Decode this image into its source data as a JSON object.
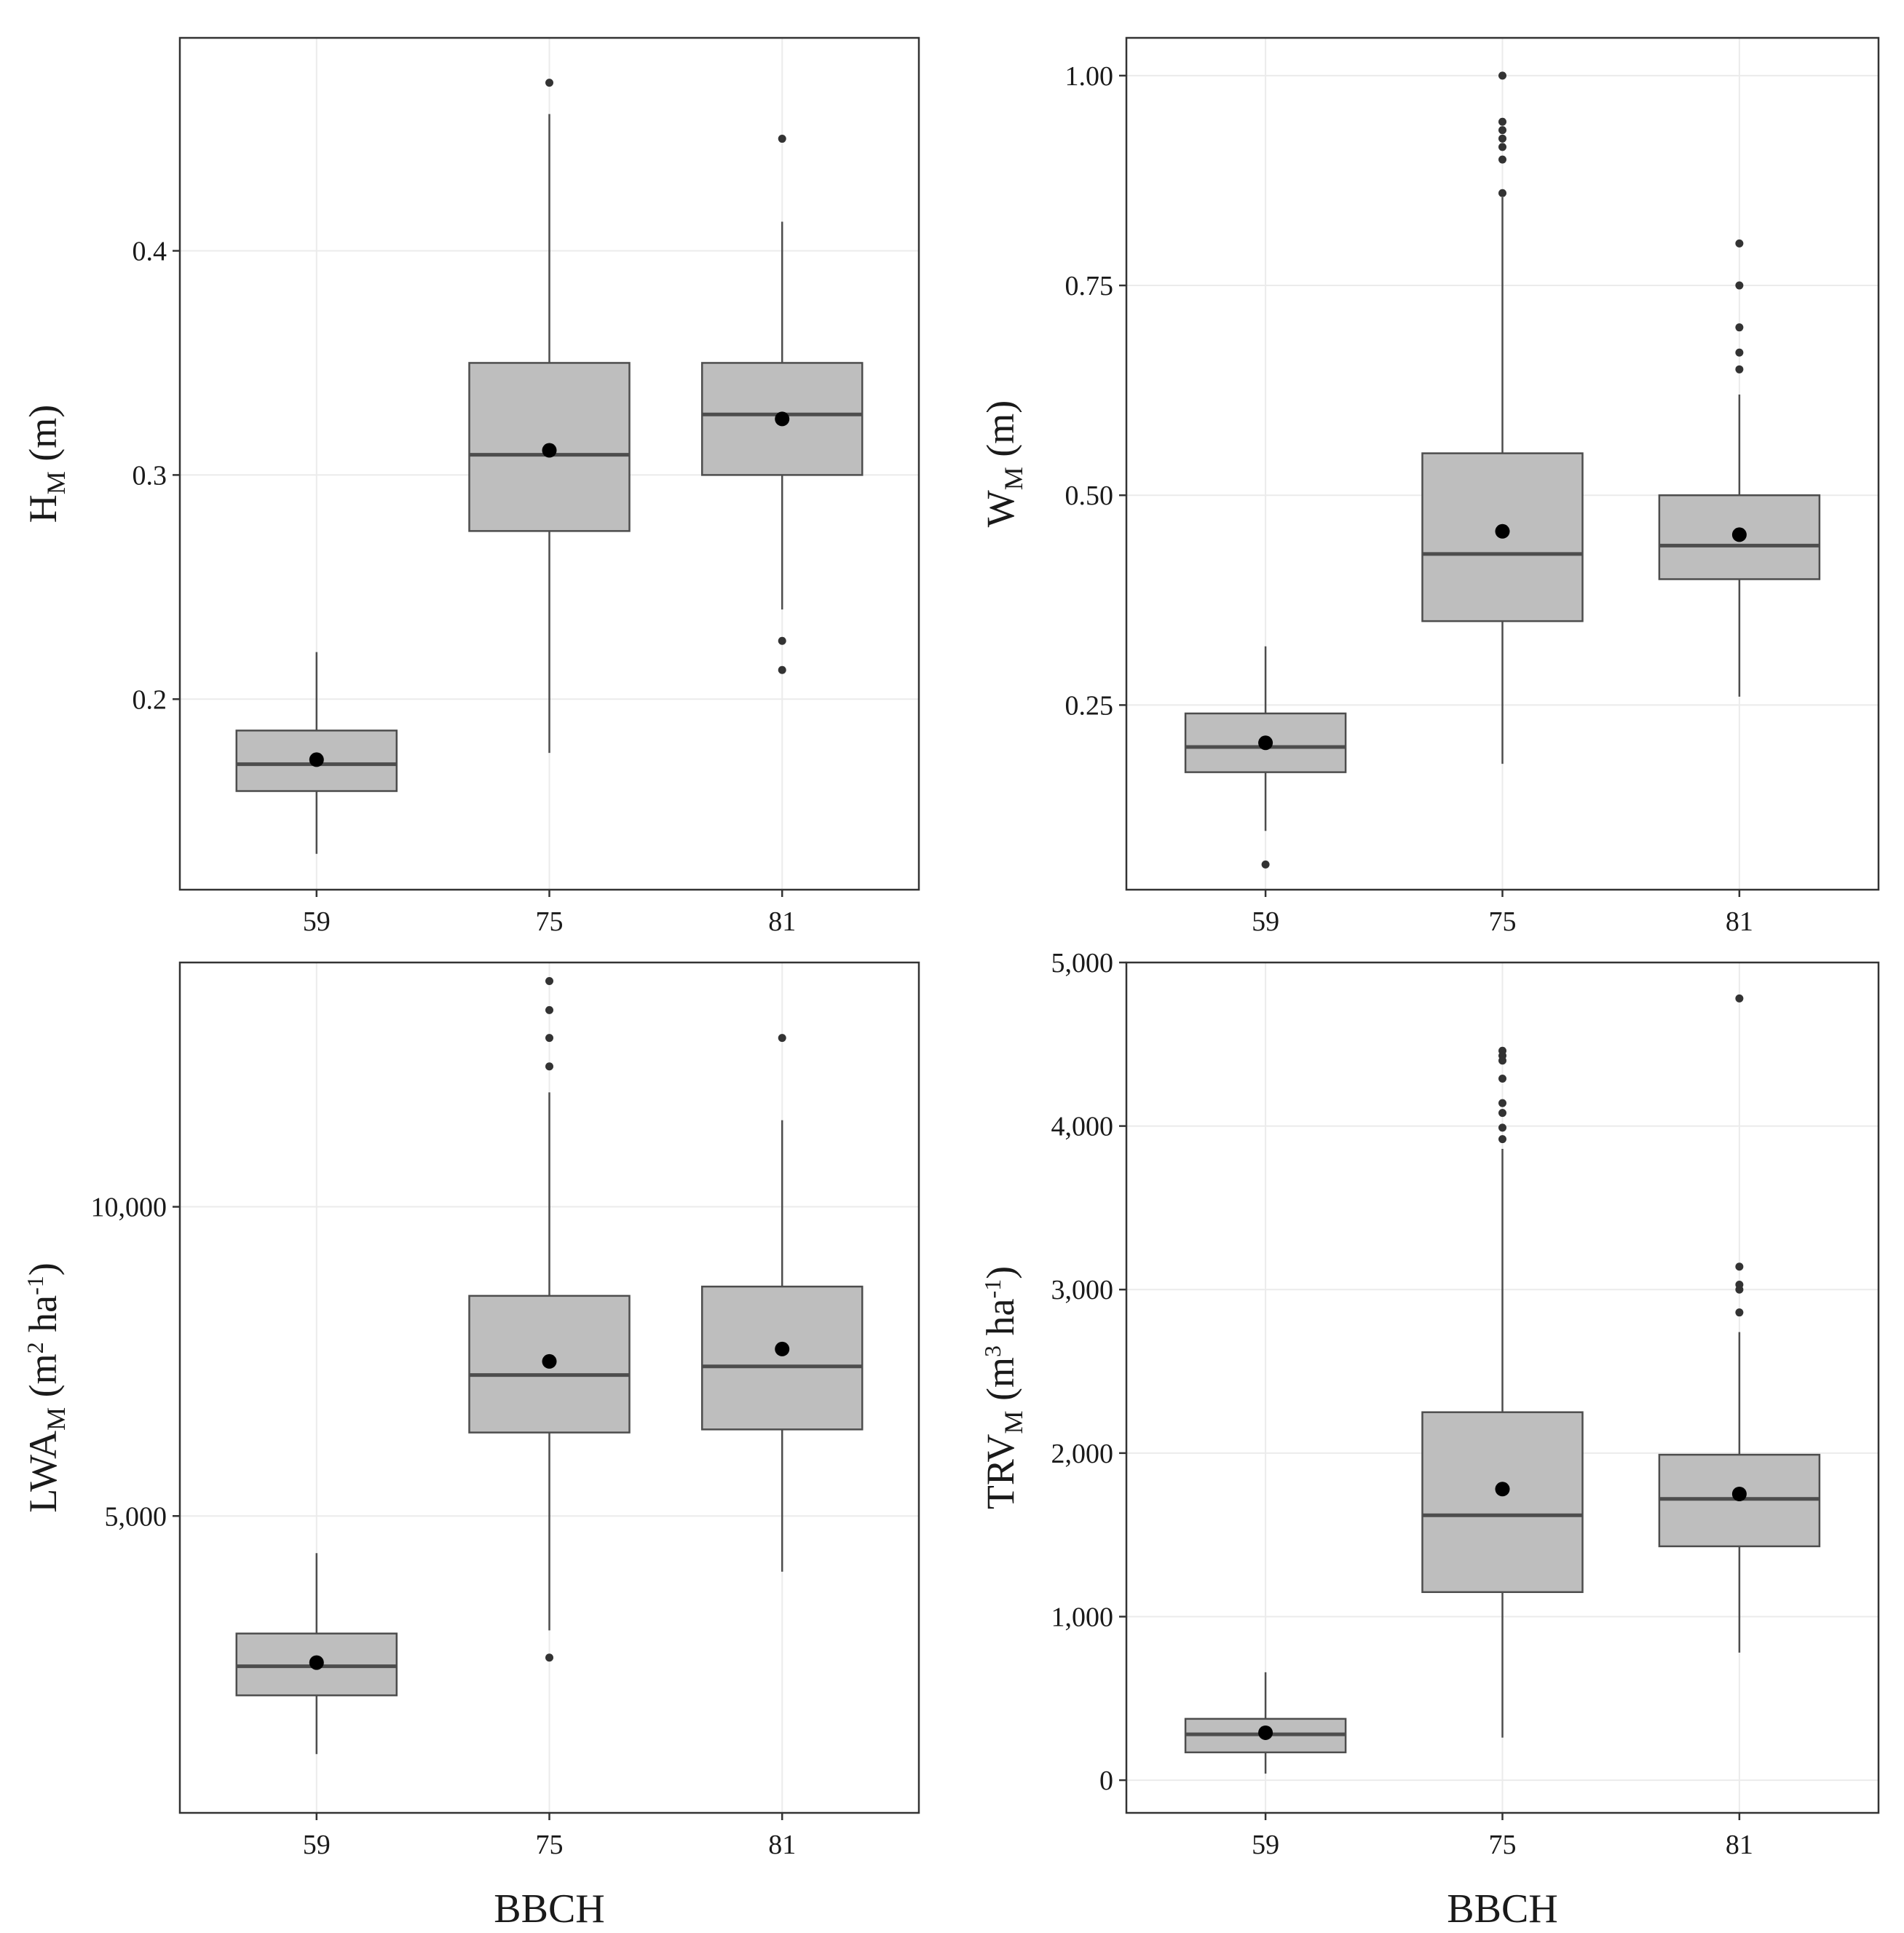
{
  "chart_data": [
    {
      "type": "boxplot",
      "ylabel": {
        "main": "H",
        "sub": "M",
        "unit": " (m)"
      },
      "xlabel": "",
      "categories": [
        "59",
        "75",
        "81"
      ],
      "ylim": [
        0.115,
        0.495
      ],
      "yticks": [
        0.2,
        0.3,
        0.4
      ],
      "ytick_labels": [
        "0.2",
        "0.3",
        "0.4"
      ],
      "grid": true,
      "boxes": [
        {
          "category": "59",
          "whisker_low": 0.131,
          "q1": 0.159,
          "median": 0.171,
          "q3": 0.186,
          "whisker_high": 0.221,
          "mean": 0.173,
          "outliers": []
        },
        {
          "category": "75",
          "whisker_low": 0.176,
          "q1": 0.275,
          "median": 0.309,
          "q3": 0.35,
          "whisker_high": 0.461,
          "mean": 0.311,
          "outliers": [
            0.475
          ]
        },
        {
          "category": "81",
          "whisker_low": 0.24,
          "q1": 0.3,
          "median": 0.327,
          "q3": 0.35,
          "whisker_high": 0.413,
          "mean": 0.325,
          "outliers": [
            0.45,
            0.226,
            0.213
          ]
        }
      ]
    },
    {
      "type": "boxplot",
      "ylabel": {
        "main": "W",
        "sub": "M",
        "unit": " (m)"
      },
      "xlabel": "",
      "categories": [
        "59",
        "75",
        "81"
      ],
      "ylim": [
        0.03,
        1.045
      ],
      "yticks": [
        0.25,
        0.5,
        0.75,
        1.0
      ],
      "ytick_labels": [
        "0.25",
        "0.50",
        "0.75",
        "1.00"
      ],
      "grid": true,
      "boxes": [
        {
          "category": "59",
          "whisker_low": 0.1,
          "q1": 0.17,
          "median": 0.2,
          "q3": 0.24,
          "whisker_high": 0.32,
          "mean": 0.205,
          "outliers": [
            0.06
          ]
        },
        {
          "category": "75",
          "whisker_low": 0.18,
          "q1": 0.35,
          "median": 0.43,
          "q3": 0.55,
          "whisker_high": 0.855,
          "mean": 0.457,
          "outliers": [
            1.0,
            0.945,
            0.935,
            0.925,
            0.915,
            0.9,
            0.86
          ]
        },
        {
          "category": "81",
          "whisker_low": 0.26,
          "q1": 0.4,
          "median": 0.44,
          "q3": 0.5,
          "whisker_high": 0.62,
          "mean": 0.453,
          "outliers": [
            0.8,
            0.75,
            0.7,
            0.67,
            0.65
          ]
        }
      ]
    },
    {
      "type": "boxplot",
      "ylabel": {
        "main": "LWA",
        "sub": "M",
        "unit": " (m",
        "sup": "2",
        "unit2": " ha",
        "sup2": "-1",
        "unit3": ")"
      },
      "xlabel": "BBCH",
      "categories": [
        "59",
        "75",
        "81"
      ],
      "ylim": [
        200,
        13950
      ],
      "yticks": [
        5000,
        10000
      ],
      "ytick_labels": [
        "5,000",
        "10,000"
      ],
      "grid": true,
      "boxes": [
        {
          "category": "59",
          "whisker_low": 1150,
          "q1": 2100,
          "median": 2570,
          "q3": 3100,
          "whisker_high": 4400,
          "mean": 2630,
          "outliers": []
        },
        {
          "category": "75",
          "whisker_low": 3150,
          "q1": 6350,
          "median": 7280,
          "q3": 8560,
          "whisker_high": 11850,
          "mean": 7500,
          "outliers": [
            13650,
            13180,
            12730,
            12270,
            2710
          ]
        },
        {
          "category": "81",
          "whisker_low": 4100,
          "q1": 6400,
          "median": 7420,
          "q3": 8710,
          "whisker_high": 11400,
          "mean": 7700,
          "outliers": [
            12730
          ]
        }
      ]
    },
    {
      "type": "boxplot",
      "ylabel": {
        "main": "TRV",
        "sub": "M",
        "unit": " (m",
        "sup": "3",
        "unit2": " ha",
        "sup2": "-1",
        "unit3": ")"
      },
      "xlabel": "BBCH",
      "categories": [
        "59",
        "75",
        "81"
      ],
      "ylim": [
        -200,
        5000
      ],
      "yticks": [
        0,
        1000,
        2000,
        3000,
        4000,
        5000
      ],
      "ytick_labels": [
        "0",
        "1,000",
        "2,000",
        "3,000",
        "4,000",
        "5,000"
      ],
      "grid": true,
      "boxes": [
        {
          "category": "59",
          "whisker_low": 40,
          "q1": 170,
          "median": 280,
          "q3": 375,
          "whisker_high": 660,
          "mean": 290,
          "outliers": []
        },
        {
          "category": "75",
          "whisker_low": 260,
          "q1": 1150,
          "median": 1620,
          "q3": 2250,
          "whisker_high": 3860,
          "mean": 1780,
          "outliers": [
            4460,
            4430,
            4400,
            4290,
            4140,
            4080,
            3990,
            3920
          ]
        },
        {
          "category": "81",
          "whisker_low": 780,
          "q1": 1430,
          "median": 1720,
          "q3": 1990,
          "whisker_high": 2740,
          "mean": 1750,
          "outliers": [
            4780,
            3140,
            3030,
            3000,
            2860
          ]
        }
      ]
    }
  ]
}
